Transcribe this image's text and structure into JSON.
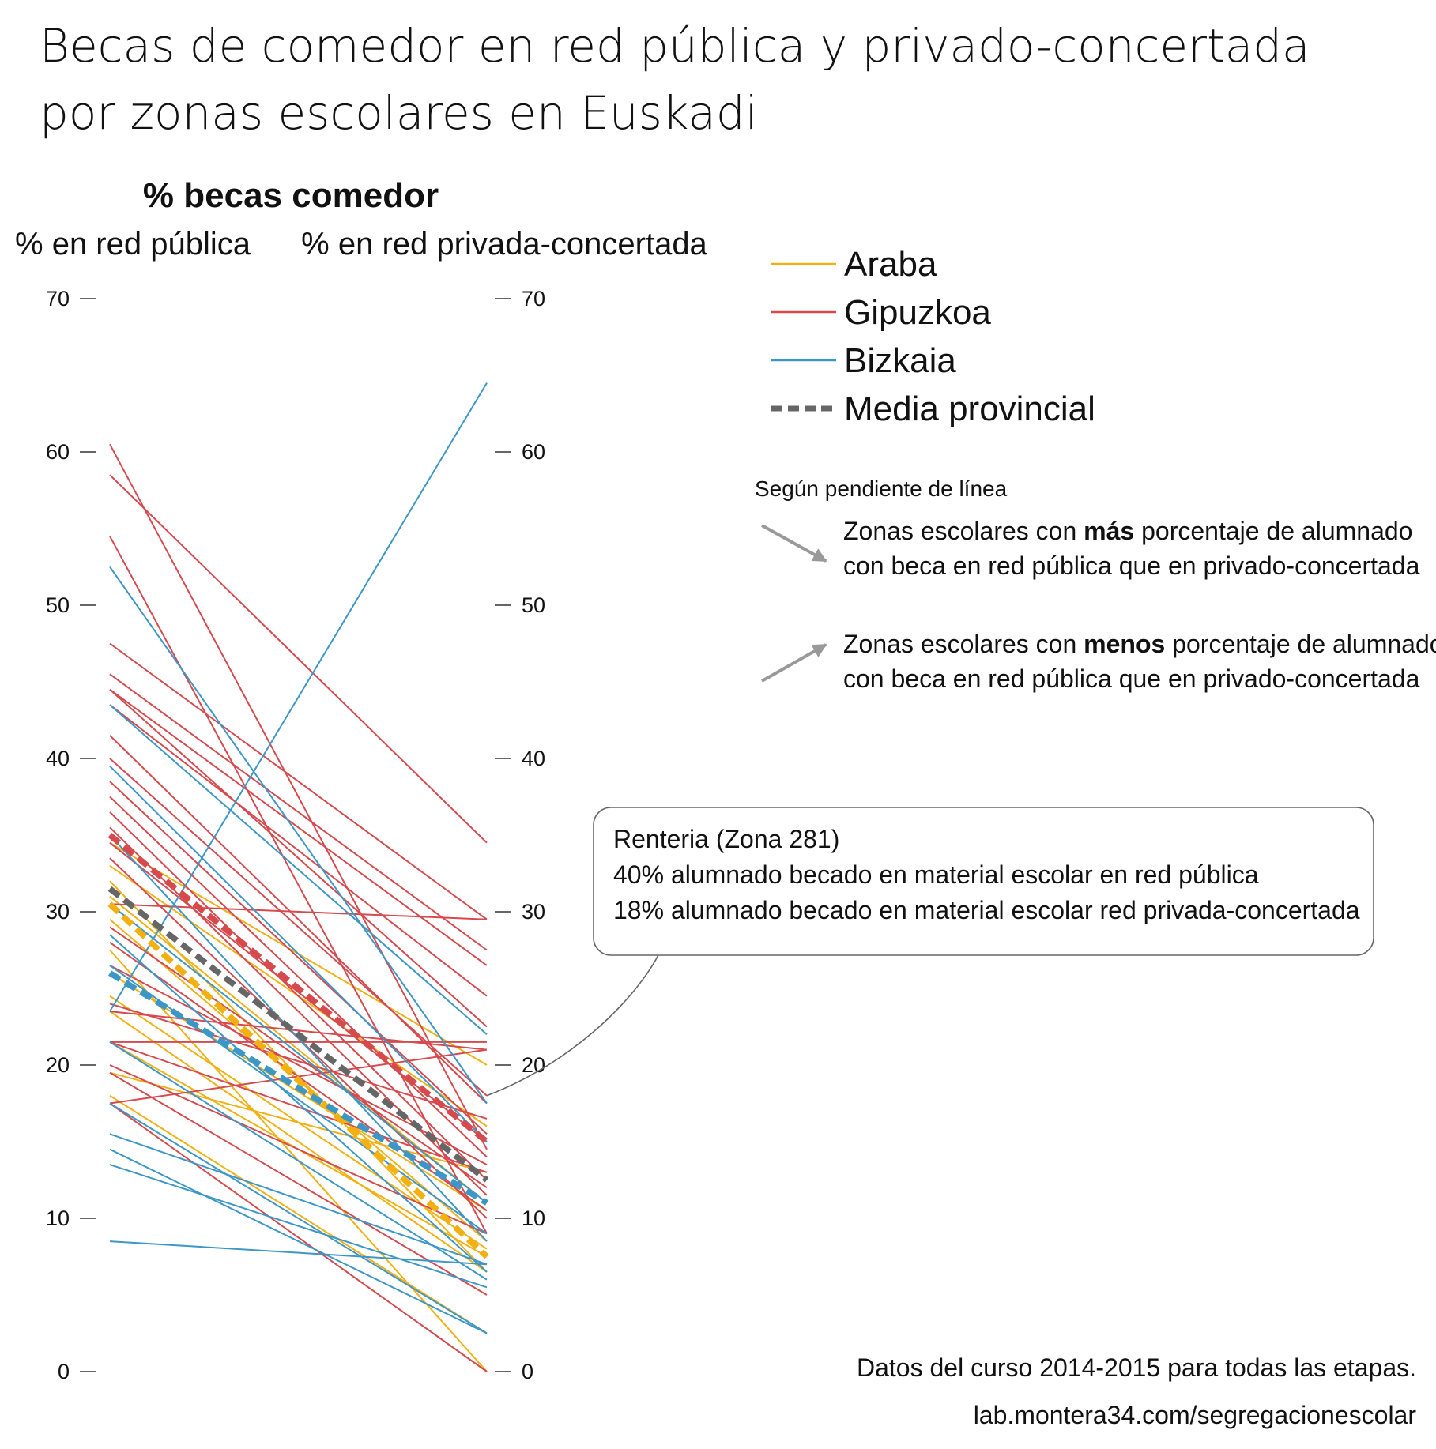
{
  "title_line1": "Becas de comedor en red pública y privado-concertada",
  "title_line2": "por zonas escolares en Euskadi",
  "colors": {
    "Araba": "#F2B011",
    "Gipuzkoa": "#D64A4E",
    "Bizkaia": "#3C97C6",
    "Media provincial": "#666666"
  },
  "legend": [
    {
      "label": "Araba",
      "color": "#F2B011",
      "style": "solid"
    },
    {
      "label": "Gipuzkoa",
      "color": "#D64A4E",
      "style": "solid"
    },
    {
      "label": "Bizkaia",
      "color": "#3C97C6",
      "style": "solid"
    },
    {
      "label": "Media provincial",
      "color": "#666666",
      "style": "dashed"
    }
  ],
  "slope_note": {
    "heading": "Según pendiente de línea",
    "down": {
      "l1_pre": "Zonas escolares con ",
      "l1_bold": "más",
      "l1_post": " porcentaje de alumnado",
      "l2": "con beca en red pública que en privado-concertada"
    },
    "up": {
      "l1_pre": "Zonas escolares con ",
      "l1_bold": "menos",
      "l1_post": " porcentaje de alumnado",
      "l2": "con beca en red pública que en privado-concertada"
    }
  },
  "annotation": {
    "line1": "Renteria (Zona 281)",
    "line2": "40% alumnado becado en material escolar en red pública",
    "line3": "18% alumnado becado en material escolar  red privada-concertada",
    "target": [
      40,
      18
    ]
  },
  "footer": {
    "line1": "Datos del curso 2014-2015 para todas las etapas.",
    "line2": "lab.montera34.com/segregacionescolar"
  },
  "chart_data": {
    "type": "line",
    "subtype": "slope",
    "title": "% becas comedor",
    "left_label": "% en red pública",
    "right_label": "% en red privada-concertada",
    "categories": [
      "% en red pública",
      "% en red privada-concertada"
    ],
    "ylim": [
      0,
      70
    ],
    "yticks": [
      "0",
      "10",
      "20",
      "30",
      "40",
      "50",
      "60",
      "70"
    ],
    "grid": false,
    "legend_position": "top-right",
    "series": [
      {
        "name": "Araba",
        "kind": "zone",
        "values": [
          34.5,
          20.0
        ]
      },
      {
        "name": "Araba",
        "kind": "zone",
        "values": [
          33.0,
          16.0
        ]
      },
      {
        "name": "Araba",
        "kind": "zone",
        "values": [
          32.0,
          6.5
        ]
      },
      {
        "name": "Araba",
        "kind": "zone",
        "values": [
          31.0,
          11.0
        ]
      },
      {
        "name": "Araba",
        "kind": "zone",
        "values": [
          29.5,
          8.5
        ]
      },
      {
        "name": "Araba",
        "kind": "zone",
        "values": [
          27.5,
          0.0
        ]
      },
      {
        "name": "Araba",
        "kind": "zone",
        "values": [
          26.0,
          10.5
        ]
      },
      {
        "name": "Araba",
        "kind": "zone",
        "values": [
          24.5,
          8.0
        ]
      },
      {
        "name": "Araba",
        "kind": "zone",
        "values": [
          23.5,
          6.5
        ]
      },
      {
        "name": "Araba",
        "kind": "zone",
        "values": [
          21.5,
          7.5
        ]
      },
      {
        "name": "Araba",
        "kind": "zone",
        "values": [
          19.5,
          13.0
        ]
      },
      {
        "name": "Araba",
        "kind": "zone",
        "values": [
          18.0,
          2.5
        ]
      },
      {
        "name": "Araba",
        "kind": "mean",
        "values": [
          30.5,
          7.5
        ]
      },
      {
        "name": "Gipuzkoa",
        "kind": "zone",
        "values": [
          60.5,
          14.5
        ]
      },
      {
        "name": "Gipuzkoa",
        "kind": "zone",
        "values": [
          58.5,
          34.5
        ]
      },
      {
        "name": "Gipuzkoa",
        "kind": "zone",
        "values": [
          54.5,
          9.0
        ]
      },
      {
        "name": "Gipuzkoa",
        "kind": "zone",
        "values": [
          47.5,
          29.5
        ]
      },
      {
        "name": "Gipuzkoa",
        "kind": "zone",
        "values": [
          45.5,
          27.5
        ]
      },
      {
        "name": "Gipuzkoa",
        "kind": "zone",
        "values": [
          44.5,
          26.5
        ]
      },
      {
        "name": "Gipuzkoa",
        "kind": "zone",
        "values": [
          44.5,
          22.5
        ]
      },
      {
        "name": "Gipuzkoa",
        "kind": "zone",
        "values": [
          43.5,
          24.5
        ]
      },
      {
        "name": "Gipuzkoa",
        "kind": "zone",
        "values": [
          41.5,
          17.5
        ]
      },
      {
        "name": "Gipuzkoa",
        "kind": "zone",
        "values": [
          40.0,
          18.0
        ]
      },
      {
        "name": "Gipuzkoa",
        "kind": "zone",
        "values": [
          38.5,
          15.5
        ]
      },
      {
        "name": "Gipuzkoa",
        "kind": "zone",
        "values": [
          37.5,
          14.0
        ]
      },
      {
        "name": "Gipuzkoa",
        "kind": "zone",
        "values": [
          36.5,
          12.5
        ]
      },
      {
        "name": "Gipuzkoa",
        "kind": "zone",
        "values": [
          35.5,
          11.5
        ]
      },
      {
        "name": "Gipuzkoa",
        "kind": "zone",
        "values": [
          34.5,
          15.0
        ]
      },
      {
        "name": "Gipuzkoa",
        "kind": "zone",
        "values": [
          33.5,
          10.0
        ]
      },
      {
        "name": "Gipuzkoa",
        "kind": "zone",
        "values": [
          30.5,
          29.5
        ]
      },
      {
        "name": "Gipuzkoa",
        "kind": "zone",
        "values": [
          29.0,
          12.0
        ]
      },
      {
        "name": "Gipuzkoa",
        "kind": "zone",
        "values": [
          28.0,
          10.5
        ]
      },
      {
        "name": "Gipuzkoa",
        "kind": "zone",
        "values": [
          26.5,
          13.5
        ]
      },
      {
        "name": "Gipuzkoa",
        "kind": "zone",
        "values": [
          24.0,
          16.5
        ]
      },
      {
        "name": "Gipuzkoa",
        "kind": "zone",
        "values": [
          23.5,
          21.0
        ]
      },
      {
        "name": "Gipuzkoa",
        "kind": "zone",
        "values": [
          21.5,
          21.5
        ]
      },
      {
        "name": "Gipuzkoa",
        "kind": "zone",
        "values": [
          21.5,
          13.0
        ]
      },
      {
        "name": "Gipuzkoa",
        "kind": "zone",
        "values": [
          20.0,
          9.0
        ]
      },
      {
        "name": "Gipuzkoa",
        "kind": "zone",
        "values": [
          19.5,
          5.0
        ]
      },
      {
        "name": "Gipuzkoa",
        "kind": "zone",
        "values": [
          17.5,
          21.0
        ]
      },
      {
        "name": "Gipuzkoa",
        "kind": "zone",
        "values": [
          17.5,
          0.0
        ]
      },
      {
        "name": "Gipuzkoa",
        "kind": "mean",
        "values": [
          35.0,
          15.0
        ]
      },
      {
        "name": "Bizkaia",
        "kind": "zone",
        "values": [
          52.5,
          17.5
        ]
      },
      {
        "name": "Bizkaia",
        "kind": "zone",
        "values": [
          43.5,
          22.0
        ]
      },
      {
        "name": "Bizkaia",
        "kind": "zone",
        "values": [
          39.5,
          15.0
        ]
      },
      {
        "name": "Bizkaia",
        "kind": "zone",
        "values": [
          35.0,
          8.5
        ]
      },
      {
        "name": "Bizkaia",
        "kind": "zone",
        "values": [
          30.5,
          11.0
        ]
      },
      {
        "name": "Bizkaia",
        "kind": "zone",
        "values": [
          28.5,
          6.5
        ]
      },
      {
        "name": "Bizkaia",
        "kind": "zone",
        "values": [
          26.5,
          9.0
        ]
      },
      {
        "name": "Bizkaia",
        "kind": "zone",
        "values": [
          23.5,
          64.5
        ]
      },
      {
        "name": "Bizkaia",
        "kind": "zone",
        "values": [
          21.5,
          6.0
        ]
      },
      {
        "name": "Bizkaia",
        "kind": "zone",
        "values": [
          17.5,
          2.5
        ]
      },
      {
        "name": "Bizkaia",
        "kind": "zone",
        "values": [
          15.5,
          7.0
        ]
      },
      {
        "name": "Bizkaia",
        "kind": "zone",
        "values": [
          14.5,
          2.5
        ]
      },
      {
        "name": "Bizkaia",
        "kind": "zone",
        "values": [
          13.5,
          5.5
        ]
      },
      {
        "name": "Bizkaia",
        "kind": "zone",
        "values": [
          8.5,
          7.0
        ]
      },
      {
        "name": "Bizkaia",
        "kind": "mean",
        "values": [
          26.0,
          11.0
        ]
      },
      {
        "name": "Media provincial",
        "kind": "total",
        "values": [
          31.5,
          12.5
        ]
      }
    ]
  }
}
